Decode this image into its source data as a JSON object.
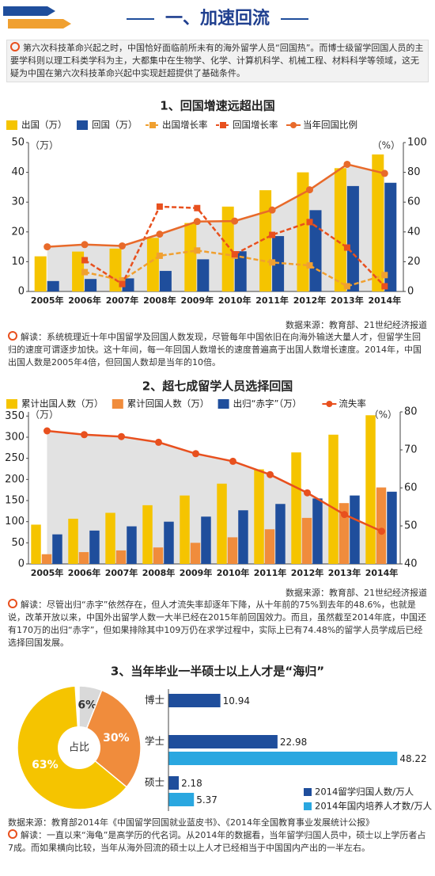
{
  "header": {
    "title": "一、加速回流"
  },
  "intro": "第六次科技革命兴起之时，中国恰好面临前所未有的海外留学人员“回国热”。而博士级留学回国人员的主要学科则以理工科类学科为主，大都集中在生物学、化学、计算机科学、机械工程、材料科学等领域，这无疑为中国在第六次科技革命兴起中实现赶超提供了基础条件。",
  "chart_data": [
    {
      "type": "bar",
      "title": "1、回国增速远超出国",
      "y_unit": "（万）",
      "y2_unit": "（%）",
      "categories": [
        "2005年",
        "2006年",
        "2007年",
        "2008年",
        "2009年",
        "2010年",
        "2011年",
        "2012年",
        "2013年",
        "2014年"
      ],
      "series": [
        {
          "name": "出国（万）",
          "color": "#f5c400",
          "values": [
            11.8,
            13.4,
            14.4,
            18,
            23,
            28.5,
            34,
            40,
            41.4,
            46
          ]
        },
        {
          "name": "回国（万）",
          "color": "#1f4e9c",
          "values": [
            3.5,
            4.2,
            4.4,
            6.9,
            10.8,
            13.5,
            18.6,
            27.3,
            35.4,
            36.5
          ]
        },
        {
          "name": "出国增长率",
          "type": "line",
          "axis": "y2",
          "dashed": true,
          "marker": "square",
          "color": "#f0a030",
          "values": [
            null,
            13,
            7.5,
            24,
            27.5,
            24,
            19.5,
            17.5,
            3.5,
            11
          ]
        },
        {
          "name": "回国增长率",
          "type": "line",
          "axis": "y2",
          "dashed": true,
          "marker": "square",
          "color": "#e8501e",
          "values": [
            null,
            21,
            5,
            57,
            56,
            25,
            38,
            46.6,
            29.5,
            3.5
          ]
        },
        {
          "name": "当年回国比例",
          "type": "line",
          "axis": "y2",
          "area": true,
          "marker": "circle",
          "color": "#e86a2a",
          "values": [
            30,
            31.5,
            30.6,
            38.5,
            47,
            47.3,
            54.7,
            68.3,
            85.4,
            79.3
          ]
        }
      ],
      "ylim": [
        0,
        50
      ],
      "yticks": [
        0,
        10,
        20,
        30,
        40,
        50
      ],
      "y2lim": [
        0,
        100
      ],
      "y2ticks": [
        0,
        20,
        40,
        60,
        80,
        100
      ],
      "grid": false,
      "source": "数据来源：教育部、21世纪经济报道",
      "note": "解读：系统梳理近十年中国留学及回国人数发现，尽管每年中国依旧在向海外输送大量人才，但留学生回归的速度可谓逐步加快。这十年间，每一年回国人数增长的速度普遍高于出国人数增长速度。2014年，中国出国人数是2005年4倍，但回国人数却是当年的10倍。"
    },
    {
      "type": "bar",
      "title": "2、超七成留学人员选择回国",
      "y_unit": "（万）",
      "y2_unit": "（%）",
      "categories": [
        "2005年",
        "2006年",
        "2007年",
        "2008年",
        "2009年",
        "2010年",
        "2011年",
        "2012年",
        "2013年",
        "2014年"
      ],
      "series": [
        {
          "name": "累计出国人数（万）",
          "color": "#f5c400",
          "values": [
            93,
            107,
            121,
            139,
            162,
            190,
            224,
            264,
            306,
            352
          ]
        },
        {
          "name": "累计回国人数（万）",
          "color": "#f08c3c",
          "values": [
            23,
            28,
            32,
            39,
            50,
            63,
            82,
            109,
            144,
            181
          ]
        },
        {
          "name": "出归“赤字”（万）",
          "color": "#1f4e9c",
          "values": [
            70,
            79,
            89,
            100,
            112,
            127,
            142,
            155,
            162,
            171
          ]
        },
        {
          "name": "流失率",
          "type": "line",
          "axis": "y2",
          "area": true,
          "marker": "circle",
          "color": "#e8501e",
          "values": [
            75,
            74,
            73.5,
            72,
            69,
            67,
            63.5,
            58.7,
            53,
            48.6
          ]
        }
      ],
      "ylim": [
        0,
        360
      ],
      "yticks": [
        0,
        50,
        100,
        150,
        200,
        250,
        300,
        350
      ],
      "y2lim": [
        40,
        80
      ],
      "y2ticks": [
        40,
        50,
        60,
        70,
        80
      ],
      "grid": false,
      "source": "数据来源：教育部、21世纪经济报道",
      "note": "解读：尽管出归“赤字”依然存在，但人才流失率却逐年下降，从十年前的75%到去年的48.6%，也就是说，改革开放以来，中国外出留学人数一大半已经在2015年前回国效力。而且，虽然截至2014年底，中国还有170万的出归“赤字”，但如果排除其中109万仍在求学过程中，实际上已有74.48%的留学人员学成后已经选择回国发展。"
    },
    {
      "type": "pie",
      "title": "3、当年毕业一半硕士以上人才是“海归”",
      "center_label": "占比",
      "values": [
        6,
        30,
        63
      ],
      "value_labels": [
        "6%",
        "30%",
        "63%"
      ],
      "colors": [
        "#d9d9d9",
        "#f08c3c",
        "#f5c400"
      ]
    },
    {
      "type": "bar",
      "orientation": "horizontal",
      "categories": [
        "博士",
        "学士",
        "硕士"
      ],
      "series": [
        {
          "name": "2014留学归国人数/万人",
          "color": "#1f4e9c",
          "values": [
            10.94,
            22.98,
            2.18
          ]
        },
        {
          "name": "2014年国内培养人才数/万人",
          "color": "#2aa7e0",
          "values": [
            null,
            48.22,
            5.37
          ]
        }
      ],
      "xlim": [
        0,
        50
      ],
      "source": "数据来源：教育部2014年《中国留学回国就业蓝皮书》、《2014年全国教育事业发展统计公报》",
      "note": "解读：一直以来“海龟”是高学历的代名词。从2014年的数据看，当年留学归国人员中，硕士以上学历者占7成。而如果横向比较，当年从海外回流的硕士以上人才已经相当于中国国内产出的一半左右。"
    }
  ]
}
